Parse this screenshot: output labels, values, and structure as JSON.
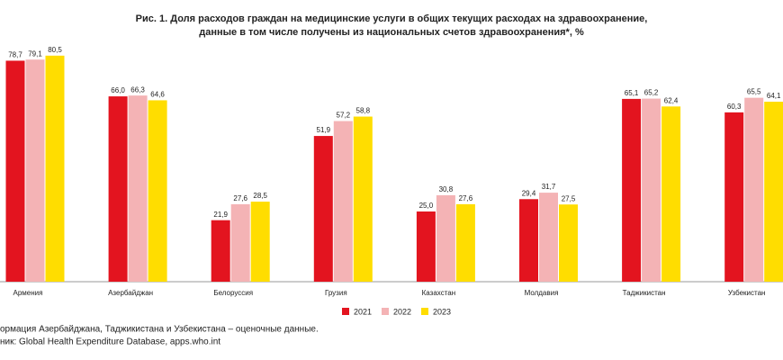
{
  "chart_data": {
    "type": "bar",
    "title": [
      "Рис. 1. Доля расходов граждан на медицинские услуги в общих текущих расходах на здравоохранение,",
      "данные в том числе получены из национальных счетов здравоохранения*, %"
    ],
    "categories": [
      "Армения",
      "Азербайджан",
      "Белоруссия",
      "Грузия",
      "Казахстан",
      "Молдавия",
      "Таджикистан",
      "Узбекистан"
    ],
    "series": [
      {
        "name": "2021",
        "color": "#e3141f",
        "values": [
          78.7,
          66.0,
          21.9,
          51.9,
          25.0,
          29.4,
          65.1,
          60.3
        ],
        "value_labels": [
          "78,7",
          "66,0",
          "21,9",
          "51,9",
          "25,0",
          "29,4",
          "65,1",
          "60,3"
        ]
      },
      {
        "name": "2022",
        "color": "#f4b3b5",
        "values": [
          79.1,
          66.3,
          27.6,
          57.2,
          30.8,
          31.7,
          65.2,
          65.5
        ],
        "value_labels": [
          "79,1",
          "66,3",
          "27,6",
          "57,2",
          "30,8",
          "31,7",
          "65,2",
          "65,5"
        ]
      },
      {
        "name": "2023",
        "color": "#ffdd00",
        "values": [
          80.5,
          64.6,
          28.5,
          58.8,
          27.6,
          27.5,
          62.4,
          64.1
        ],
        "value_labels": [
          "80,5",
          "64,6",
          "28,5",
          "58,8",
          "27,6",
          "27,5",
          "62,4",
          "64,1"
        ]
      }
    ],
    "ylim": [
      0,
      100
    ],
    "notes": [
      "ормация Азербайджана, Таджикистана и Узбекистана – оценочные данные.",
      "ник: Global Health Expenditure Database, apps.who.int"
    ]
  }
}
